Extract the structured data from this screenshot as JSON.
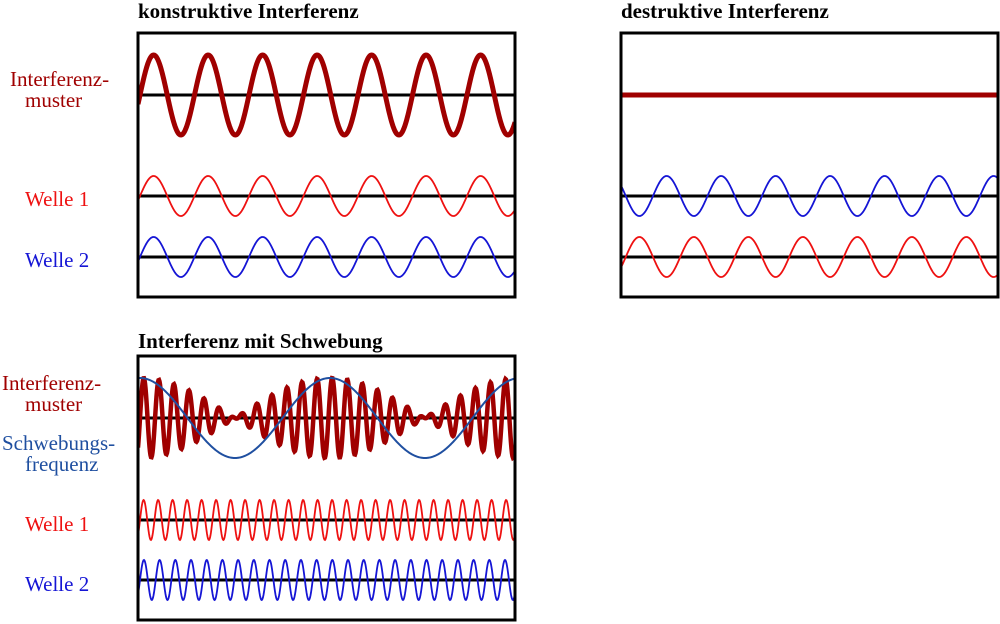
{
  "panels": [
    {
      "title": "konstruktive Interferenz",
      "labels": [
        {
          "lines": [
            "Interferenz-",
            "muster"
          ]
        },
        {
          "lines": [
            "Welle 1"
          ]
        },
        {
          "lines": [
            "Welle 2"
          ]
        }
      ]
    },
    {
      "title": "destruktive Interferenz"
    },
    {
      "title": "Interferenz mit Schwebung",
      "labels": [
        {
          "lines": [
            "Interferenz-",
            "muster"
          ]
        },
        {
          "lines": [
            "Schwebungs-",
            "frequenz"
          ]
        },
        {
          "lines": [
            "Welle 1"
          ]
        },
        {
          "lines": [
            "Welle 2"
          ]
        }
      ]
    }
  ]
}
